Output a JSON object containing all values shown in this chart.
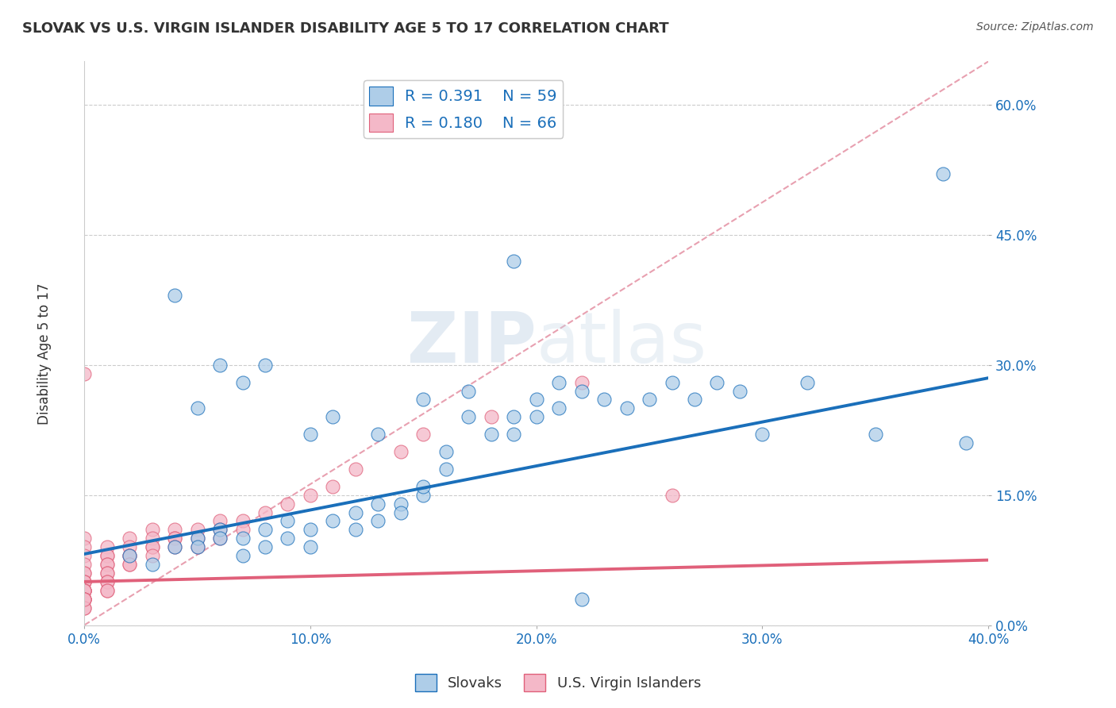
{
  "title": "SLOVAK VS U.S. VIRGIN ISLANDER DISABILITY AGE 5 TO 17 CORRELATION CHART",
  "source": "Source: ZipAtlas.com",
  "ylabel": "Disability Age 5 to 17",
  "legend_labels": [
    "Slovaks",
    "U.S. Virgin Islanders"
  ],
  "legend_r": [
    0.391,
    0.18
  ],
  "legend_n": [
    59,
    66
  ],
  "blue_color": "#aecde8",
  "pink_color": "#f4b8c8",
  "blue_line_color": "#1a6fba",
  "pink_line_color": "#e0607a",
  "diag_color": "#e8a0b0",
  "watermark_color": "#d8e8f4",
  "xlim": [
    0.0,
    0.4
  ],
  "ylim": [
    0.0,
    0.65
  ],
  "xticks": [
    0.0,
    0.1,
    0.2,
    0.3,
    0.4
  ],
  "yticks": [
    0.0,
    0.15,
    0.3,
    0.45,
    0.6
  ],
  "blue_x": [
    0.02,
    0.03,
    0.04,
    0.05,
    0.05,
    0.06,
    0.06,
    0.07,
    0.07,
    0.08,
    0.08,
    0.09,
    0.09,
    0.1,
    0.1,
    0.11,
    0.12,
    0.12,
    0.13,
    0.13,
    0.14,
    0.14,
    0.15,
    0.15,
    0.16,
    0.16,
    0.17,
    0.18,
    0.19,
    0.2,
    0.2,
    0.21,
    0.22,
    0.23,
    0.24,
    0.25,
    0.26,
    0.27,
    0.28,
    0.29,
    0.05,
    0.07,
    0.08,
    0.1,
    0.11,
    0.13,
    0.15,
    0.17,
    0.19,
    0.21,
    0.3,
    0.32,
    0.19,
    0.35,
    0.38,
    0.39,
    0.04,
    0.06,
    0.22
  ],
  "blue_y": [
    0.08,
    0.07,
    0.09,
    0.1,
    0.09,
    0.11,
    0.1,
    0.1,
    0.08,
    0.09,
    0.11,
    0.1,
    0.12,
    0.11,
    0.09,
    0.12,
    0.13,
    0.11,
    0.14,
    0.12,
    0.14,
    0.13,
    0.15,
    0.16,
    0.2,
    0.18,
    0.24,
    0.22,
    0.22,
    0.24,
    0.26,
    0.25,
    0.27,
    0.26,
    0.25,
    0.26,
    0.28,
    0.26,
    0.28,
    0.27,
    0.25,
    0.28,
    0.3,
    0.22,
    0.24,
    0.22,
    0.26,
    0.27,
    0.24,
    0.28,
    0.22,
    0.28,
    0.42,
    0.22,
    0.52,
    0.21,
    0.38,
    0.3,
    0.03
  ],
  "pink_x": [
    0.0,
    0.0,
    0.0,
    0.0,
    0.0,
    0.0,
    0.0,
    0.0,
    0.0,
    0.0,
    0.0,
    0.0,
    0.0,
    0.0,
    0.0,
    0.0,
    0.0,
    0.0,
    0.0,
    0.0,
    0.01,
    0.01,
    0.01,
    0.01,
    0.01,
    0.01,
    0.01,
    0.01,
    0.01,
    0.01,
    0.01,
    0.02,
    0.02,
    0.02,
    0.02,
    0.02,
    0.02,
    0.03,
    0.03,
    0.03,
    0.03,
    0.03,
    0.04,
    0.04,
    0.04,
    0.04,
    0.05,
    0.05,
    0.05,
    0.06,
    0.06,
    0.06,
    0.07,
    0.07,
    0.08,
    0.09,
    0.1,
    0.11,
    0.12,
    0.14,
    0.15,
    0.18,
    0.22,
    0.26,
    0.0,
    0.0
  ],
  "pink_y": [
    0.29,
    0.1,
    0.09,
    0.08,
    0.07,
    0.06,
    0.06,
    0.05,
    0.05,
    0.05,
    0.04,
    0.04,
    0.04,
    0.04,
    0.04,
    0.03,
    0.03,
    0.03,
    0.03,
    0.02,
    0.09,
    0.08,
    0.08,
    0.07,
    0.07,
    0.06,
    0.06,
    0.05,
    0.05,
    0.04,
    0.04,
    0.1,
    0.09,
    0.08,
    0.08,
    0.07,
    0.07,
    0.11,
    0.1,
    0.09,
    0.09,
    0.08,
    0.11,
    0.1,
    0.1,
    0.09,
    0.11,
    0.1,
    0.09,
    0.12,
    0.11,
    0.1,
    0.12,
    0.11,
    0.13,
    0.14,
    0.15,
    0.16,
    0.18,
    0.2,
    0.22,
    0.24,
    0.28,
    0.15,
    0.02,
    0.03
  ],
  "blue_line": [
    0.0,
    0.4,
    0.082,
    0.285
  ],
  "pink_line": [
    0.0,
    0.4,
    0.05,
    0.075
  ],
  "diag_line": [
    0.0,
    0.4,
    0.0,
    0.65
  ]
}
